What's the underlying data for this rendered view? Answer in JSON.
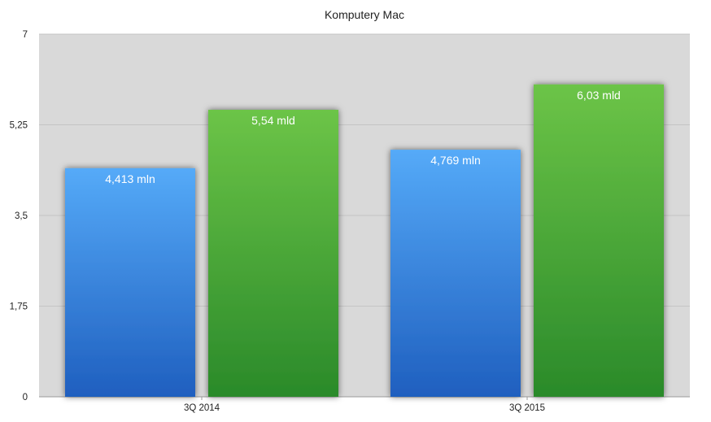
{
  "chart_data": {
    "type": "bar",
    "title": "Komputery Mac",
    "categories": [
      "3Q 2014",
      "3Q 2015"
    ],
    "series": [
      {
        "values": [
          4.413,
          4.769
        ],
        "labels": [
          "4,413 mln",
          "4,769 mln"
        ],
        "color": "#3b8fe6"
      },
      {
        "values": [
          5.54,
          6.03
        ],
        "labels": [
          "5,54 mld",
          "6,03 mld"
        ],
        "color": "#44a838"
      }
    ],
    "yticks": [
      {
        "value": 0,
        "label": "0"
      },
      {
        "value": 1.75,
        "label": "1,75"
      },
      {
        "value": 3.5,
        "label": "3,5"
      },
      {
        "value": 5.25,
        "label": "5,25"
      },
      {
        "value": 7,
        "label": "7"
      }
    ],
    "ylim": [
      0,
      7
    ],
    "grid": true,
    "background": "#d9d9d9",
    "xlabel": "",
    "ylabel": ""
  }
}
